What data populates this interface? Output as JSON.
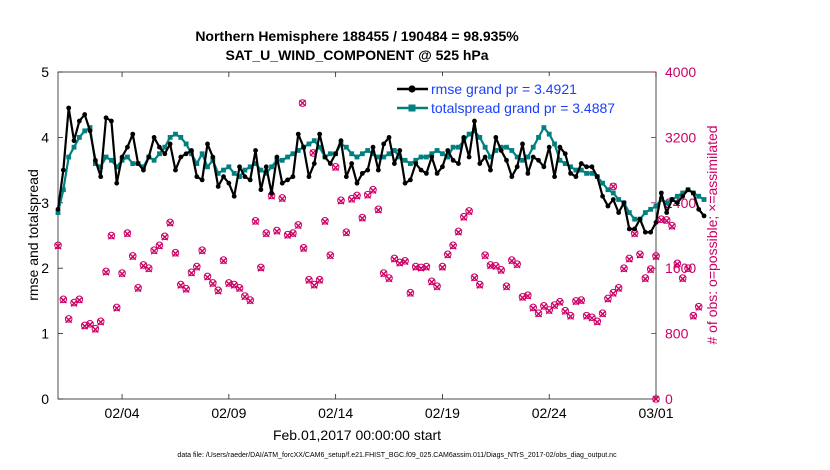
{
  "chart_data": {
    "type": "line",
    "title": "Northern Hemisphere 188455 / 190484 = 98.935%",
    "subtitle": "SAT_U_WIND_COMPONENT @ 525 hPa",
    "xlabel": "Feb.01,2017 00:00:00 start",
    "ylabel": "rmse and totalspread",
    "y2label": "# of obs: o=possible; ×=assimilated",
    "ylim": [
      0,
      5
    ],
    "y2lim": [
      0,
      4000
    ],
    "xlim": [
      1,
      29
    ],
    "xticks": [
      {
        "x": 4,
        "label": "02/04"
      },
      {
        "x": 9,
        "label": "02/09"
      },
      {
        "x": 14,
        "label": "02/14"
      },
      {
        "x": 19,
        "label": "02/19"
      },
      {
        "x": 24,
        "label": "02/24"
      },
      {
        "x": 29,
        "label": "03/01"
      }
    ],
    "yticks": [
      "0",
      "1",
      "2",
      "3",
      "4",
      "5"
    ],
    "y2ticks": [
      "0",
      "800",
      "1600",
      "2400",
      "3200",
      "4000"
    ],
    "footer": "data file: /Users/raeder/DAI/ATM_forcXX/CAM6_setup/f.e21.FHIST_BGC.f09_025.CAM6assim.011/Diags_NTrS_2017-02/obs_diag_output.nc",
    "series": [
      {
        "name": "rmse grand pr = 3.4921",
        "color": "#000000",
        "x0": 1,
        "dx": 0.25,
        "values": [
          2.9,
          3.5,
          4.45,
          3.95,
          4.25,
          4.35,
          4.1,
          3.65,
          3.4,
          4.3,
          4.25,
          3.3,
          3.7,
          3.85,
          4.05,
          3.6,
          3.5,
          3.7,
          4.0,
          3.85,
          3.75,
          3.9,
          3.5,
          3.7,
          3.75,
          3.8,
          3.4,
          3.35,
          3.9,
          3.7,
          3.25,
          3.4,
          3.3,
          3.1,
          3.55,
          3.4,
          3.35,
          3.8,
          3.2,
          3.55,
          3.15,
          3.7,
          3.3,
          3.35,
          3.4,
          4.05,
          3.85,
          3.4,
          3.6,
          4.05,
          3.7,
          3.6,
          3.75,
          3.95,
          3.4,
          3.6,
          3.3,
          3.45,
          3.5,
          3.85,
          3.5,
          3.9,
          4.0,
          3.6,
          3.8,
          3.3,
          3.35,
          3.6,
          3.5,
          3.45,
          3.7,
          3.45,
          3.55,
          3.8,
          3.65,
          3.6,
          4.0,
          3.7,
          4.25,
          3.6,
          3.7,
          3.5,
          4.0,
          3.8,
          3.65,
          3.4,
          3.55,
          3.9,
          3.45,
          3.7,
          3.65,
          3.55,
          3.85,
          3.4,
          3.85,
          3.75,
          3.45,
          3.4,
          3.6,
          3.55,
          3.55,
          3.4,
          3.1,
          2.95,
          3.05,
          2.85,
          3.0,
          2.6,
          2.6,
          2.75,
          2.55,
          2.55,
          2.7,
          3.15,
          2.85,
          3.05,
          3.0,
          3.1,
          3.2,
          3.15,
          2.9,
          2.8
        ]
      },
      {
        "name": "totalspread grand pr = 3.4887",
        "color": "#008080",
        "x0": 1,
        "dx": 0.25,
        "values": [
          2.85,
          3.2,
          3.7,
          3.85,
          4.0,
          4.1,
          4.15,
          3.6,
          3.55,
          3.7,
          3.65,
          3.55,
          3.65,
          3.7,
          3.6,
          3.6,
          3.55,
          3.7,
          3.65,
          3.75,
          3.85,
          4.0,
          4.05,
          4.0,
          3.9,
          3.75,
          3.6,
          3.75,
          3.55,
          3.65,
          3.45,
          3.5,
          3.55,
          3.45,
          3.4,
          3.5,
          3.55,
          3.6,
          3.5,
          3.45,
          3.55,
          3.65,
          3.65,
          3.7,
          3.75,
          3.8,
          3.85,
          3.9,
          3.95,
          3.85,
          3.7,
          3.75,
          3.75,
          3.9,
          3.85,
          3.75,
          3.7,
          3.75,
          3.8,
          3.75,
          3.7,
          3.7,
          3.75,
          3.8,
          3.7,
          3.65,
          3.6,
          3.65,
          3.7,
          3.7,
          3.75,
          3.8,
          3.75,
          3.7,
          3.85,
          3.85,
          3.95,
          4.05,
          4.1,
          4.0,
          3.85,
          3.7,
          3.8,
          3.85,
          3.85,
          3.8,
          3.7,
          3.65,
          3.7,
          3.85,
          4.0,
          4.15,
          4.05,
          3.9,
          3.65,
          3.6,
          3.55,
          3.5,
          3.5,
          3.45,
          3.45,
          3.4,
          3.3,
          3.2,
          3.15,
          3.05,
          3.0,
          2.85,
          2.75,
          2.75,
          2.85,
          2.9,
          2.95,
          3.05,
          3.0,
          3.05,
          3.1,
          3.15,
          3.2,
          3.15,
          3.1,
          3.05
        ]
      }
    ],
    "obs_possible": {
      "color": "#cc0066",
      "marker": "o",
      "axis": "right",
      "x0": 1,
      "dx": 0.25,
      "values": [
        1880,
        1220,
        980,
        1180,
        1220,
        900,
        920,
        860,
        950,
        1560,
        2000,
        1120,
        1540,
        2030,
        1750,
        1360,
        1640,
        1600,
        1820,
        1880,
        1990,
        2160,
        1790,
        1400,
        1350,
        1550,
        1620,
        1820,
        1500,
        1420,
        1330,
        1700,
        1420,
        1400,
        1360,
        1260,
        1210,
        2180,
        1610,
        2030,
        2490,
        2060,
        2460,
        2010,
        2030,
        2130,
        1850,
        1460,
        1400,
        1460,
        2180,
        1760,
        2840,
        2430,
        2040,
        2450,
        2490,
        2220,
        2500,
        2560,
        2320,
        1540,
        1480,
        1720,
        1670,
        1690,
        1300,
        1620,
        1610,
        1620,
        1440,
        1380,
        1620,
        1770,
        1880,
        2050,
        2230,
        2300,
        1490,
        1400,
        1760,
        1640,
        1630,
        1580,
        1380,
        1700,
        1650,
        1250,
        1270,
        1120,
        1050,
        1140,
        1090,
        1150,
        1190,
        1080,
        1020,
        1200,
        1210,
        1020,
        1000,
        950,
        1050,
        1230,
        1300,
        1360,
        1600,
        1720,
        2030,
        1770,
        1480,
        1590,
        1750,
        2200,
        2190,
        2120,
        1660,
        1480,
        1600,
        1020,
        1130
      ]
    },
    "obs_assimilated": {
      "color": "#cc0066",
      "marker": "x",
      "axis": "right",
      "x0": 1,
      "dx": 0.25,
      "values": [
        1870,
        1210,
        970,
        1170,
        1210,
        890,
        910,
        850,
        940,
        1550,
        1990,
        1110,
        1530,
        2020,
        1740,
        1350,
        1630,
        1590,
        1810,
        1870,
        1980,
        2150,
        1780,
        1390,
        1340,
        1540,
        1610,
        1810,
        1490,
        1410,
        1320,
        1690,
        1410,
        1390,
        1350,
        1250,
        1200,
        2170,
        1600,
        2020,
        2480,
        2050,
        2450,
        2000,
        2020,
        2120,
        1840,
        1450,
        1390,
        1450,
        2170,
        1750,
        2830,
        2420,
        2030,
        2440,
        2480,
        2210,
        2490,
        2550,
        2310,
        1530,
        1470,
        1710,
        1660,
        1680,
        1290,
        1610,
        1600,
        1610,
        1430,
        1370,
        1610,
        1760,
        1870,
        2040,
        2220,
        2290,
        1480,
        1390,
        1750,
        1630,
        1620,
        1570,
        1370,
        1690,
        1640,
        1240,
        1260,
        1110,
        1040,
        1130,
        1080,
        1140,
        1180,
        1070,
        1010,
        1190,
        1200,
        1010,
        990,
        940,
        1040,
        1220,
        1290,
        1350,
        1590,
        1710,
        2020,
        1760,
        1470,
        1580,
        1740,
        2190,
        2180,
        2110,
        1650,
        1470,
        1590,
        1010,
        1120
      ]
    },
    "obs_extra_points": [
      {
        "x": 12.45,
        "y2": 3620
      },
      {
        "x": 12.95,
        "y2": 3010
      },
      {
        "x": 27.0,
        "y2": 2600
      },
      {
        "x": 29.0,
        "y2": 0
      }
    ]
  }
}
